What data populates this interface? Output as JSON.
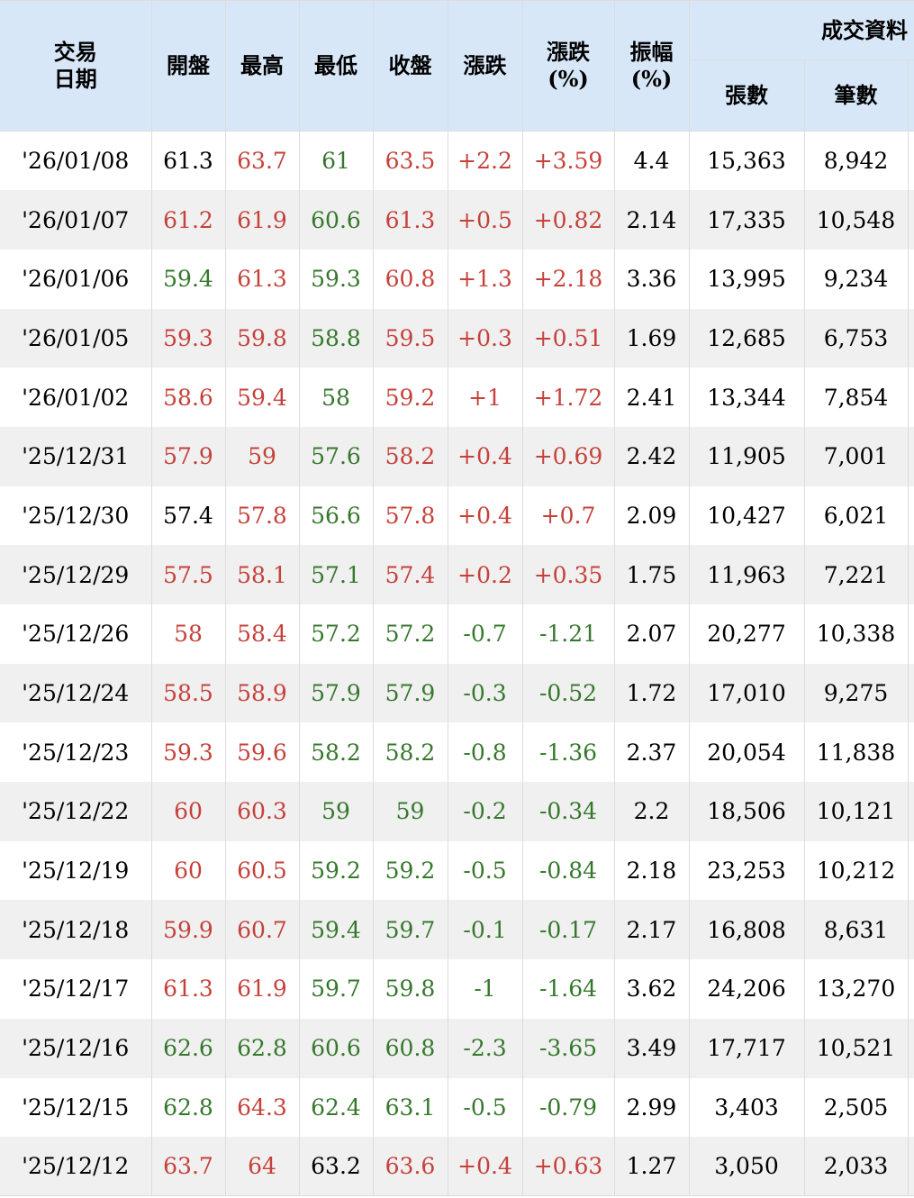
{
  "colors": {
    "up": "#c5413a",
    "down": "#35782c",
    "text": "#000000",
    "header_bg": "#d8e7f8",
    "row_bg": "#ffffff",
    "row_alt_bg": "#f0f0f0",
    "border": "#dcdcdc"
  },
  "chart_data": {
    "type": "table",
    "title": "",
    "display_headers": {
      "date": "交易\n日期",
      "open": "開盤",
      "high": "最高",
      "low": "最低",
      "close": "收盤",
      "change": "漲跌",
      "change_pct": "漲跌\n(%)",
      "amplitude": "振幅\n(%)",
      "volume_group": "成交資料",
      "lots": "張數",
      "trades": "筆數"
    },
    "columns": [
      "交易日期",
      "開盤",
      "最高",
      "最低",
      "收盤",
      "漲跌",
      "漲跌(%)",
      "振幅(%)",
      "張數",
      "筆數"
    ],
    "keys": [
      "open",
      "high",
      "low",
      "close",
      "change",
      "change_pct",
      "amplitude",
      "lots",
      "trades"
    ],
    "rows": [
      {
        "date": "'26/01/08",
        "values": [
          "61.3",
          "63.7",
          "61",
          "63.5",
          "+2.2",
          "+3.59",
          "4.4",
          "15,363",
          "8,942"
        ],
        "tones": [
          "flat",
          "up",
          "down",
          "up",
          "up",
          "up",
          "flat",
          "flat",
          "flat"
        ]
      },
      {
        "date": "'26/01/07",
        "values": [
          "61.2",
          "61.9",
          "60.6",
          "61.3",
          "+0.5",
          "+0.82",
          "2.14",
          "17,335",
          "10,548"
        ],
        "tones": [
          "up",
          "up",
          "down",
          "up",
          "up",
          "up",
          "flat",
          "flat",
          "flat"
        ]
      },
      {
        "date": "'26/01/06",
        "values": [
          "59.4",
          "61.3",
          "59.3",
          "60.8",
          "+1.3",
          "+2.18",
          "3.36",
          "13,995",
          "9,234"
        ],
        "tones": [
          "down",
          "up",
          "down",
          "up",
          "up",
          "up",
          "flat",
          "flat",
          "flat"
        ]
      },
      {
        "date": "'26/01/05",
        "values": [
          "59.3",
          "59.8",
          "58.8",
          "59.5",
          "+0.3",
          "+0.51",
          "1.69",
          "12,685",
          "6,753"
        ],
        "tones": [
          "up",
          "up",
          "down",
          "up",
          "up",
          "up",
          "flat",
          "flat",
          "flat"
        ]
      },
      {
        "date": "'26/01/02",
        "values": [
          "58.6",
          "59.4",
          "58",
          "59.2",
          "+1",
          "+1.72",
          "2.41",
          "13,344",
          "7,854"
        ],
        "tones": [
          "up",
          "up",
          "down",
          "up",
          "up",
          "up",
          "flat",
          "flat",
          "flat"
        ]
      },
      {
        "date": "'25/12/31",
        "values": [
          "57.9",
          "59",
          "57.6",
          "58.2",
          "+0.4",
          "+0.69",
          "2.42",
          "11,905",
          "7,001"
        ],
        "tones": [
          "up",
          "up",
          "down",
          "up",
          "up",
          "up",
          "flat",
          "flat",
          "flat"
        ]
      },
      {
        "date": "'25/12/30",
        "values": [
          "57.4",
          "57.8",
          "56.6",
          "57.8",
          "+0.4",
          "+0.7",
          "2.09",
          "10,427",
          "6,021"
        ],
        "tones": [
          "flat",
          "up",
          "down",
          "up",
          "up",
          "up",
          "flat",
          "flat",
          "flat"
        ]
      },
      {
        "date": "'25/12/29",
        "values": [
          "57.5",
          "58.1",
          "57.1",
          "57.4",
          "+0.2",
          "+0.35",
          "1.75",
          "11,963",
          "7,221"
        ],
        "tones": [
          "up",
          "up",
          "down",
          "up",
          "up",
          "up",
          "flat",
          "flat",
          "flat"
        ]
      },
      {
        "date": "'25/12/26",
        "values": [
          "58",
          "58.4",
          "57.2",
          "57.2",
          "-0.7",
          "-1.21",
          "2.07",
          "20,277",
          "10,338"
        ],
        "tones": [
          "up",
          "up",
          "down",
          "down",
          "down",
          "down",
          "flat",
          "flat",
          "flat"
        ]
      },
      {
        "date": "'25/12/24",
        "values": [
          "58.5",
          "58.9",
          "57.9",
          "57.9",
          "-0.3",
          "-0.52",
          "1.72",
          "17,010",
          "9,275"
        ],
        "tones": [
          "up",
          "up",
          "down",
          "down",
          "down",
          "down",
          "flat",
          "flat",
          "flat"
        ]
      },
      {
        "date": "'25/12/23",
        "values": [
          "59.3",
          "59.6",
          "58.2",
          "58.2",
          "-0.8",
          "-1.36",
          "2.37",
          "20,054",
          "11,838"
        ],
        "tones": [
          "up",
          "up",
          "down",
          "down",
          "down",
          "down",
          "flat",
          "flat",
          "flat"
        ]
      },
      {
        "date": "'25/12/22",
        "values": [
          "60",
          "60.3",
          "59",
          "59",
          "-0.2",
          "-0.34",
          "2.2",
          "18,506",
          "10,121"
        ],
        "tones": [
          "up",
          "up",
          "down",
          "down",
          "down",
          "down",
          "flat",
          "flat",
          "flat"
        ]
      },
      {
        "date": "'25/12/19",
        "values": [
          "60",
          "60.5",
          "59.2",
          "59.2",
          "-0.5",
          "-0.84",
          "2.18",
          "23,253",
          "10,212"
        ],
        "tones": [
          "up",
          "up",
          "down",
          "down",
          "down",
          "down",
          "flat",
          "flat",
          "flat"
        ]
      },
      {
        "date": "'25/12/18",
        "values": [
          "59.9",
          "60.7",
          "59.4",
          "59.7",
          "-0.1",
          "-0.17",
          "2.17",
          "16,808",
          "8,631"
        ],
        "tones": [
          "up",
          "up",
          "down",
          "down",
          "down",
          "down",
          "flat",
          "flat",
          "flat"
        ]
      },
      {
        "date": "'25/12/17",
        "values": [
          "61.3",
          "61.9",
          "59.7",
          "59.8",
          "-1",
          "-1.64",
          "3.62",
          "24,206",
          "13,270"
        ],
        "tones": [
          "up",
          "up",
          "down",
          "down",
          "down",
          "down",
          "flat",
          "flat",
          "flat"
        ]
      },
      {
        "date": "'25/12/16",
        "values": [
          "62.6",
          "62.8",
          "60.6",
          "60.8",
          "-2.3",
          "-3.65",
          "3.49",
          "17,717",
          "10,521"
        ],
        "tones": [
          "down",
          "down",
          "down",
          "down",
          "down",
          "down",
          "flat",
          "flat",
          "flat"
        ]
      },
      {
        "date": "'25/12/15",
        "values": [
          "62.8",
          "64.3",
          "62.4",
          "63.1",
          "-0.5",
          "-0.79",
          "2.99",
          "3,403",
          "2,505"
        ],
        "tones": [
          "down",
          "up",
          "down",
          "down",
          "down",
          "down",
          "flat",
          "flat",
          "flat"
        ]
      },
      {
        "date": "'25/12/12",
        "values": [
          "63.7",
          "64",
          "63.2",
          "63.6",
          "+0.4",
          "+0.63",
          "1.27",
          "3,050",
          "2,033"
        ],
        "tones": [
          "up",
          "up",
          "flat",
          "up",
          "up",
          "up",
          "flat",
          "flat",
          "flat"
        ]
      }
    ]
  }
}
